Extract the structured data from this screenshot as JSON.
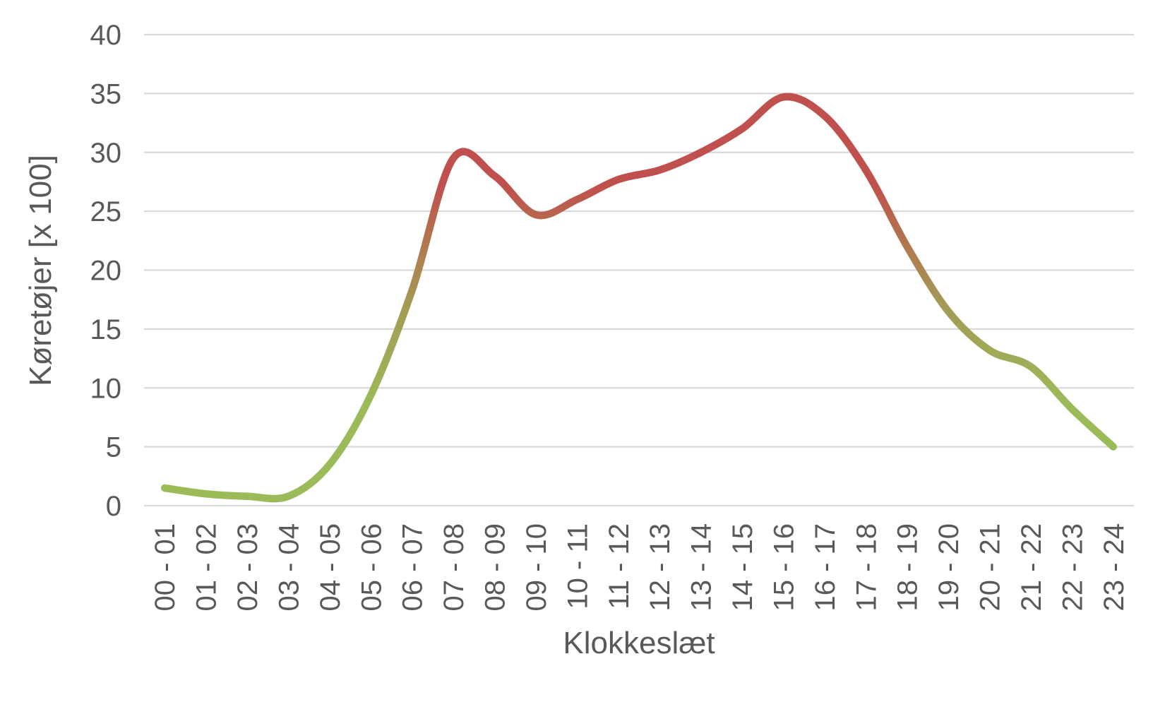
{
  "chart_data": {
    "type": "line",
    "title": "",
    "xlabel": "Klokkeslæt",
    "ylabel": "Køretøjer [x 100]",
    "categories": [
      "00 - 01",
      "01 - 02",
      "02 - 03",
      "03 - 04",
      "04 - 05",
      "05 - 06",
      "06 - 07",
      "07 - 08",
      "08 - 09",
      "09 - 10",
      "10 - 11",
      "11 - 12",
      "12 - 13",
      "13 - 14",
      "14 - 15",
      "15 - 16",
      "16 - 17",
      "17 - 18",
      "18 - 19",
      "19 - 20",
      "20 - 21",
      "21 - 22",
      "22 - 23",
      "23 - 24"
    ],
    "series": [
      {
        "name": "Køretøjer",
        "values": [
          1.5,
          1.0,
          0.8,
          0.8,
          3.5,
          9.4,
          18.3,
          29.5,
          28.0,
          24.7,
          26.0,
          27.7,
          28.5,
          30.0,
          32.0,
          34.7,
          33.1,
          28.5,
          22.0,
          16.5,
          13.2,
          11.8,
          8.2,
          5.0
        ]
      }
    ],
    "ylim": [
      0,
      40
    ],
    "ytick_step": 5,
    "yticks": [
      "0",
      "5",
      "10",
      "15",
      "20",
      "25",
      "30",
      "35",
      "40"
    ],
    "grid": true,
    "legend": false,
    "smooth": true,
    "gridline_color": "#d9d9d9",
    "text_color": "#595959",
    "background": "#ffffff",
    "line_width": 10.5,
    "line_gradient": {
      "direction": "by-value-bottom-to-top",
      "stops": [
        {
          "offset": 0.0,
          "color": "#9bbb59"
        },
        {
          "offset": 0.21,
          "color": "#9bbb59"
        },
        {
          "offset": 0.42,
          "color": "#a49b55"
        },
        {
          "offset": 0.55,
          "color": "#b07a4f"
        },
        {
          "offset": 0.68,
          "color": "#c0504d"
        },
        {
          "offset": 1.0,
          "color": "#c0504d"
        }
      ]
    }
  }
}
